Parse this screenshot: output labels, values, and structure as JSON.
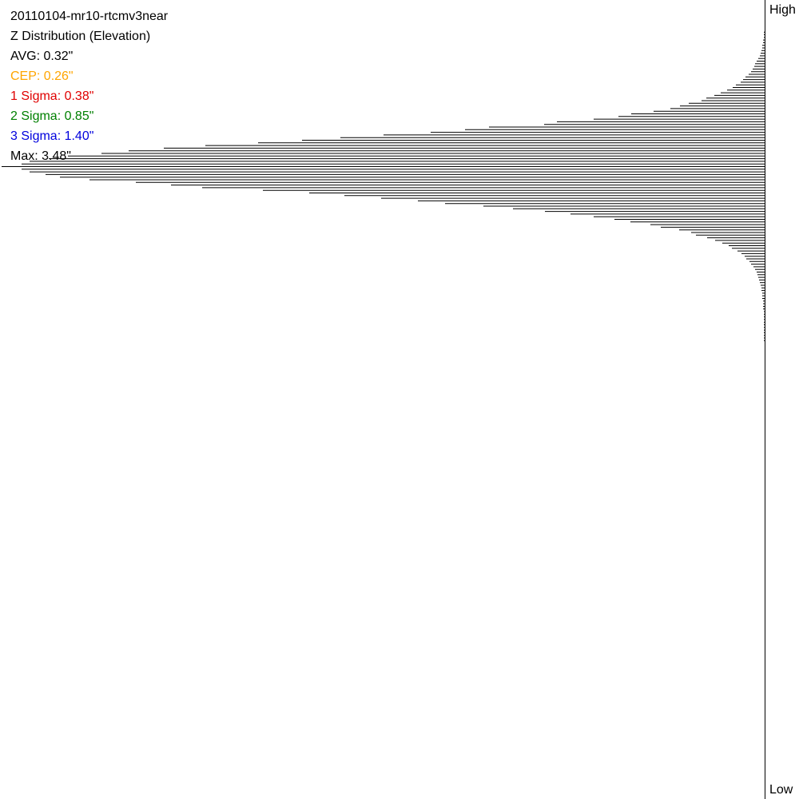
{
  "stats": {
    "file": "20110104-mr10-rtcmv3near",
    "title": "Z Distribution (Elevation)",
    "avg": "AVG: 0.32\"",
    "cep": "CEP: 0.26\"",
    "sigma1": "1 Sigma: 0.38\"",
    "sigma2": "2 Sigma: 0.85\"",
    "sigma3": "3 Sigma: 1.40\"",
    "max": "Max: 3.48\""
  },
  "colors": {
    "default": "#000000",
    "cep": "#ffa500",
    "sigma1": "#e00000",
    "sigma2": "#008000",
    "sigma3": "#0000dd"
  },
  "axis": {
    "top_label": "High",
    "bottom_label": "Low"
  },
  "chart_data": {
    "type": "bar",
    "orientation": "horizontal",
    "title": "Z Distribution (Elevation)",
    "ylabel_top": "High",
    "ylabel_bottom": "Low",
    "bins": 186,
    "values": [
      0,
      0,
      0,
      0,
      0,
      0,
      0,
      0,
      0,
      1,
      1,
      1,
      2,
      2,
      3,
      3,
      4,
      5,
      6,
      8,
      10,
      12,
      13,
      15,
      17,
      20,
      24,
      27,
      30,
      36,
      40,
      47,
      55,
      63,
      73,
      79,
      95,
      106,
      118,
      139,
      167,
      183,
      214,
      260,
      276,
      345,
      375,
      418,
      477,
      531,
      579,
      634,
      700,
      752,
      796,
      830,
      872,
      896,
      920,
      930,
      955,
      930,
      920,
      900,
      882,
      845,
      787,
      743,
      704,
      628,
      570,
      526,
      480,
      434,
      400,
      352,
      315,
      275,
      243,
      214,
      188,
      168,
      143,
      130,
      107,
      92,
      86,
      72,
      62,
      53,
      45,
      41,
      34,
      29,
      25,
      23,
      19,
      17,
      14,
      12,
      10,
      9,
      8,
      7,
      6,
      5,
      4,
      4,
      3,
      3,
      3,
      2,
      2,
      2,
      2,
      1,
      1,
      1,
      1,
      1,
      1,
      1,
      1,
      1,
      1,
      1,
      1,
      0,
      0,
      0,
      0,
      0,
      0,
      0,
      0,
      0,
      0,
      0,
      0,
      0,
      0,
      0,
      0,
      0,
      0,
      0,
      0,
      0,
      0,
      0,
      0,
      0,
      0,
      0,
      0,
      0,
      0,
      0,
      0,
      0,
      0,
      0,
      0,
      0,
      0,
      0,
      0,
      0,
      0,
      0,
      0,
      0,
      0,
      0,
      0,
      0,
      0,
      0,
      0,
      0,
      0,
      0,
      0,
      0,
      0,
      0
    ],
    "xlim": [
      0,
      955
    ],
    "grid": false,
    "legend": "none"
  }
}
